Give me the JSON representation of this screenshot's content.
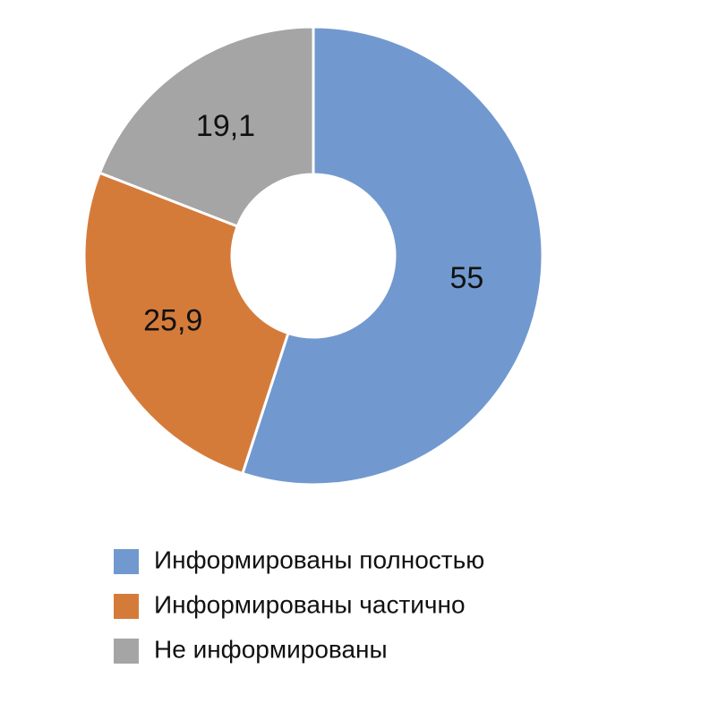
{
  "chart_data": {
    "type": "donut",
    "categories": [
      "Информированы полностью",
      "Информированы частично",
      "Не информированы"
    ],
    "values": [
      55,
      25.9,
      19.1
    ],
    "value_labels": [
      "55",
      "25,9",
      "19,1"
    ],
    "colors": [
      "#7199cf",
      "#d57b3a",
      "#a5a5a5"
    ]
  }
}
